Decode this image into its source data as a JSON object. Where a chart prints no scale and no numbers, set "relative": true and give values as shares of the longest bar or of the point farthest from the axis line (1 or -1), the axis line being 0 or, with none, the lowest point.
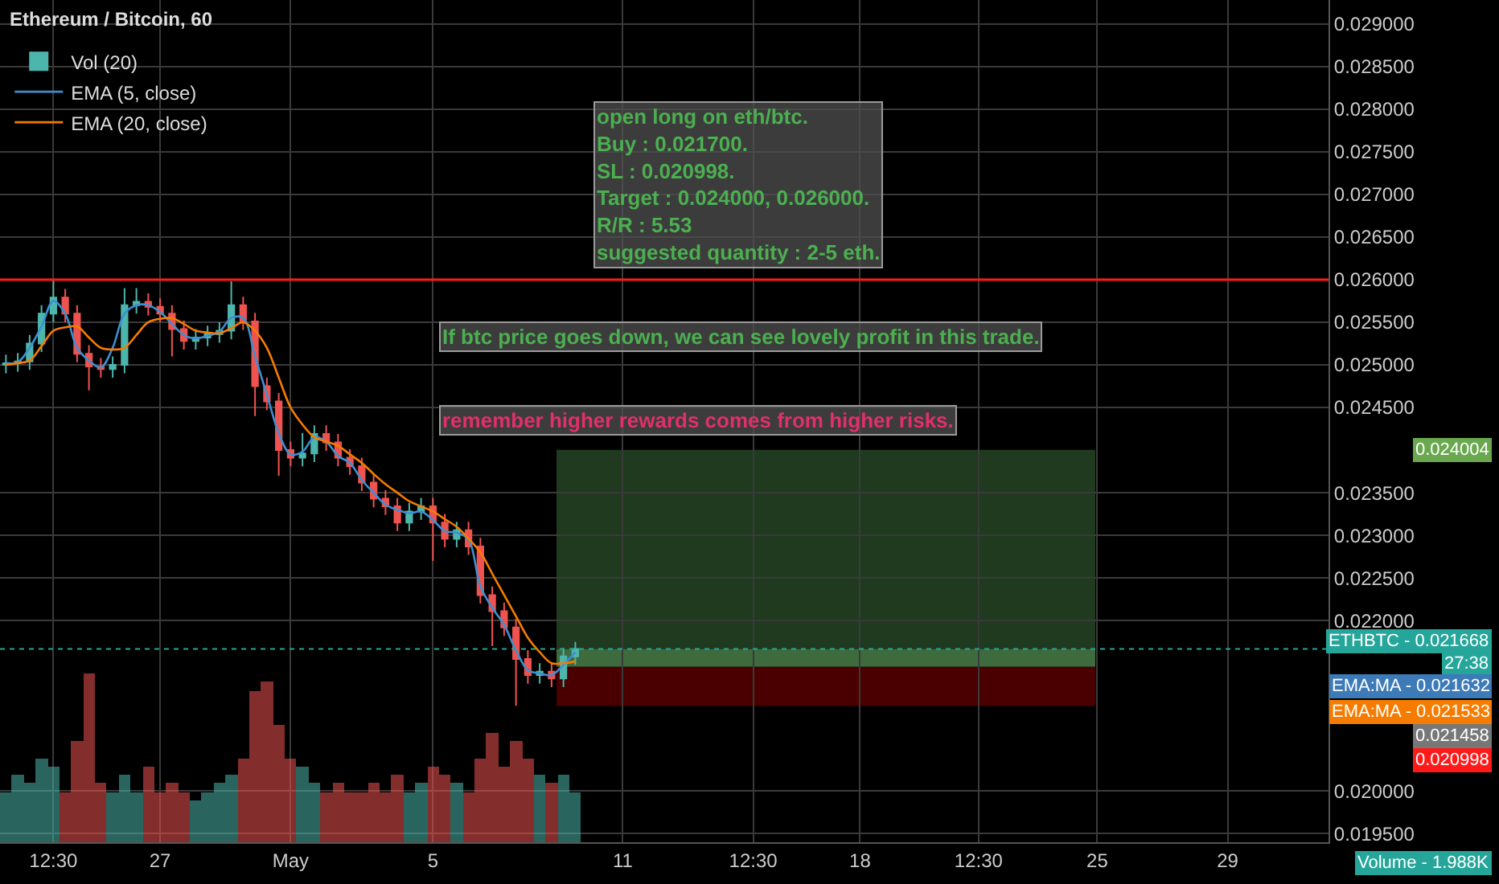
{
  "chart_data": [
    {
      "type": "candlestick",
      "title": "Ethereum / Bitcoin, 60",
      "categories": [
        null,
        null,
        null,
        null,
        "12:30",
        null,
        null,
        null,
        null,
        null,
        null,
        null,
        null,
        "27",
        null,
        null,
        null,
        null,
        null,
        null,
        null,
        null,
        null,
        null,
        "May",
        null,
        null,
        null,
        null,
        null,
        null,
        null,
        null,
        null,
        null,
        null,
        "5",
        null,
        null,
        null,
        null,
        null,
        null,
        null,
        null,
        null,
        null,
        null,
        null,
        null,
        null,
        null,
        "11",
        null,
        null,
        null,
        null,
        null,
        null,
        null,
        null,
        null,
        null,
        "12:30",
        null,
        null,
        null,
        null,
        null,
        null,
        null,
        null,
        "18",
        null,
        null,
        null,
        null,
        null,
        null,
        null,
        null,
        null,
        "12:30",
        null,
        null,
        null,
        null,
        null,
        null,
        null,
        null,
        null,
        "25",
        null,
        null,
        null,
        null,
        null,
        null,
        null,
        null,
        null,
        null,
        "29",
        null,
        null,
        null,
        null,
        null,
        null,
        null,
        null
      ],
      "ohlc": [
        [
          0.025,
          0.02512,
          0.0249,
          0.02502
        ],
        [
          0.02502,
          0.02514,
          0.02492,
          0.02504
        ],
        [
          0.02504,
          0.02535,
          0.02494,
          0.02525
        ],
        [
          0.02525,
          0.0257,
          0.02515,
          0.0256
        ],
        [
          0.0256,
          0.026,
          0.0255,
          0.02579
        ],
        [
          0.02579,
          0.02589,
          0.0255,
          0.0256
        ],
        [
          0.0256,
          0.0257,
          0.02503,
          0.02513
        ],
        [
          0.02513,
          0.02523,
          0.0247,
          0.02498
        ],
        [
          0.02498,
          0.02508,
          0.02485,
          0.02495
        ],
        [
          0.02495,
          0.0251,
          0.02485,
          0.025
        ],
        [
          0.025,
          0.0259,
          0.0249,
          0.0257
        ],
        [
          0.0257,
          0.0259,
          0.0256,
          0.02574
        ],
        [
          0.02574,
          0.02584,
          0.02558,
          0.02568
        ],
        [
          0.02568,
          0.02578,
          0.0255,
          0.0256
        ],
        [
          0.0256,
          0.0257,
          0.0251,
          0.02542
        ],
        [
          0.02542,
          0.02552,
          0.02518,
          0.02528
        ],
        [
          0.02528,
          0.02542,
          0.02518,
          0.02532
        ],
        [
          0.02532,
          0.02546,
          0.02522,
          0.02536
        ],
        [
          0.02536,
          0.0255,
          0.02526,
          0.0254
        ],
        [
          0.0254,
          0.02598,
          0.0253,
          0.0257
        ],
        [
          0.0257,
          0.0258,
          0.02541,
          0.02551
        ],
        [
          0.02551,
          0.02561,
          0.0244,
          0.02475
        ],
        [
          0.02475,
          0.02485,
          0.02447,
          0.02457
        ],
        [
          0.02457,
          0.02467,
          0.0237,
          0.024
        ],
        [
          0.024,
          0.0241,
          0.02381,
          0.02391
        ],
        [
          0.02391,
          0.0242,
          0.02381,
          0.02396
        ],
        [
          0.02396,
          0.02429,
          0.02386,
          0.02419
        ],
        [
          0.02419,
          0.02429,
          0.02399,
          0.02409
        ],
        [
          0.02409,
          0.02419,
          0.02381,
          0.02391
        ],
        [
          0.02391,
          0.02401,
          0.02371,
          0.02381
        ],
        [
          0.02381,
          0.02391,
          0.02352,
          0.02362
        ],
        [
          0.02362,
          0.02372,
          0.02333,
          0.02343
        ],
        [
          0.02343,
          0.02353,
          0.02324,
          0.02334
        ],
        [
          0.02334,
          0.02344,
          0.02305,
          0.02315
        ],
        [
          0.02315,
          0.02338,
          0.02305,
          0.02328
        ],
        [
          0.02328,
          0.02344,
          0.02318,
          0.02334
        ],
        [
          0.02334,
          0.02344,
          0.0227,
          0.02315
        ],
        [
          0.02315,
          0.02325,
          0.02286,
          0.02296
        ],
        [
          0.02296,
          0.02316,
          0.02286,
          0.02306
        ],
        [
          0.02306,
          0.02316,
          0.02277,
          0.02287
        ],
        [
          0.02287,
          0.02297,
          0.0222,
          0.0223
        ],
        [
          0.0223,
          0.0224,
          0.0217,
          0.02211
        ],
        [
          0.02211,
          0.02221,
          0.02182,
          0.02192
        ],
        [
          0.02192,
          0.02202,
          0.021,
          0.02155
        ],
        [
          0.02155,
          0.02165,
          0.02126,
          0.02136
        ],
        [
          0.02136,
          0.0215,
          0.02126,
          0.0214
        ],
        [
          0.0214,
          0.0215,
          0.02122,
          0.02132
        ],
        [
          0.02132,
          0.02168,
          0.02122,
          0.02158
        ],
        [
          0.02158,
          0.02175,
          0.02148,
          0.021668
        ],
        null,
        null,
        null,
        null,
        null,
        null,
        null,
        null,
        null,
        null,
        null,
        null,
        null,
        null,
        null,
        null,
        null,
        null,
        null,
        null,
        null,
        null,
        null,
        null,
        null,
        null,
        null,
        null,
        null,
        null,
        null,
        null,
        null,
        null,
        null,
        null,
        null,
        null,
        null,
        null,
        null,
        null,
        null,
        null,
        null,
        null,
        null,
        null,
        null,
        null,
        null,
        null,
        null,
        null,
        null,
        null,
        null,
        null,
        null,
        null,
        null,
        null,
        null
      ],
      "colors": [
        "#4db6ac",
        "#4db6ac",
        "#4db6ac",
        "#4db6ac",
        "#4db6ac",
        "#ef5350",
        "#ef5350",
        "#ef5350",
        "#ef5350",
        "#4db6ac",
        "#4db6ac",
        "#4db6ac",
        "#ef5350",
        "#ef5350",
        "#ef5350",
        "#ef5350",
        "#4db6ac",
        "#4db6ac",
        "#4db6ac",
        "#4db6ac",
        "#ef5350",
        "#ef5350",
        "#ef5350",
        "#ef5350",
        "#ef5350",
        "#4db6ac",
        "#4db6ac",
        "#ef5350",
        "#ef5350",
        "#ef5350",
        "#ef5350",
        "#ef5350",
        "#ef5350",
        "#ef5350",
        "#4db6ac",
        "#4db6ac",
        "#ef5350",
        "#ef5350",
        "#4db6ac",
        "#ef5350",
        "#ef5350",
        "#ef5350",
        "#ef5350",
        "#ef5350",
        "#ef5350",
        "#4db6ac",
        "#ef5350",
        "#4db6ac",
        "#4db6ac",
        null,
        null,
        null,
        null,
        null,
        null,
        null,
        null,
        null,
        null,
        null,
        null,
        null,
        null,
        null,
        null,
        null,
        null,
        null,
        null,
        null,
        null,
        null,
        null,
        null,
        null,
        null,
        null,
        null,
        null,
        null,
        null,
        null,
        null,
        null,
        null,
        null,
        null,
        null,
        null,
        null,
        null,
        null,
        null,
        null,
        null,
        null,
        null,
        null,
        null,
        null,
        null,
        null,
        null,
        null,
        null,
        null,
        null,
        null,
        null,
        null,
        null,
        null
      ],
      "series": [
        {
          "name": "EMA (5, close)",
          "type": "line",
          "color": "#3d8fd1",
          "values": [
            0.02502,
            0.02503,
            0.0252,
            0.02545,
            0.02575,
            0.0256,
            0.0252,
            0.02505,
            0.02497,
            0.0252,
            0.0256,
            0.0257,
            0.0257,
            0.02562,
            0.02548,
            0.02535,
            0.02531,
            0.02534,
            0.02539,
            0.02555,
            0.02555,
            0.0251,
            0.02465,
            0.0242,
            0.02395,
            0.02398,
            0.02415,
            0.0241,
            0.02393,
            0.02385,
            0.02365,
            0.0235,
            0.02336,
            0.0233,
            0.02326,
            0.02328,
            0.02318,
            0.02305,
            0.02303,
            0.02295,
            0.0224,
            0.02215,
            0.02195,
            0.02165,
            0.02142,
            0.02138,
            0.02136,
            0.02148,
            0.02163,
            null,
            null,
            null,
            null,
            null,
            null,
            null,
            null,
            null,
            null,
            null,
            null,
            null,
            null,
            null,
            null,
            null,
            null,
            null,
            null,
            null,
            null,
            null,
            null,
            null,
            null,
            null,
            null,
            null,
            null,
            null,
            null,
            null,
            null,
            null,
            null,
            null,
            null,
            null,
            null,
            null,
            null,
            null,
            null,
            null,
            null,
            null,
            null,
            null,
            null,
            null,
            null,
            null,
            null,
            null,
            null,
            null,
            null,
            null,
            null,
            null,
            null,
            null
          ]
        },
        {
          "name": "EMA (20, close)",
          "type": "line",
          "color": "#f57c00",
          "values": [
            0.025,
            0.02502,
            0.02505,
            0.02522,
            0.0254,
            0.02544,
            0.02545,
            0.02532,
            0.0252,
            0.02518,
            0.0252,
            0.02535,
            0.0255,
            0.02554,
            0.02555,
            0.02548,
            0.0254,
            0.02538,
            0.02537,
            0.02543,
            0.0255,
            0.0254,
            0.0252,
            0.02485,
            0.0245,
            0.0243,
            0.02415,
            0.0241,
            0.02405,
            0.02395,
            0.02385,
            0.02372,
            0.0236,
            0.0235,
            0.0234,
            0.02334,
            0.02328,
            0.02319,
            0.0231,
            0.02296,
            0.0228,
            0.02255,
            0.0223,
            0.02205,
            0.0218,
            0.02163,
            0.0215,
            0.0215,
            0.02152,
            null,
            null,
            null,
            null,
            null,
            null,
            null,
            null,
            null,
            null,
            null,
            null,
            null,
            null,
            null,
            null,
            null,
            null,
            null,
            null,
            null,
            null,
            null,
            null,
            null,
            null,
            null,
            null,
            null,
            null,
            null,
            null,
            null,
            null,
            null,
            null,
            null,
            null,
            null,
            null,
            null,
            null,
            null,
            null,
            null,
            null,
            null,
            null,
            null,
            null,
            null,
            null,
            null,
            null,
            null,
            null,
            null,
            null,
            null,
            null,
            null,
            null,
            null
          ]
        }
      ],
      "ylim": [
        0.0194,
        0.02928
      ],
      "yticks": [
        {
          "value": 0.0195,
          "label": "0.019500"
        },
        {
          "value": 0.02,
          "label": "0.020000"
        },
        {
          "value": 0.022,
          "label": "0.022000"
        },
        {
          "value": 0.0225,
          "label": "0.022500"
        },
        {
          "value": 0.023,
          "label": "0.023000"
        },
        {
          "value": 0.0235,
          "label": "0.023500"
        },
        {
          "value": 0.0245,
          "label": "0.024500"
        },
        {
          "value": 0.025,
          "label": "0.025000"
        },
        {
          "value": 0.0255,
          "label": "0.025500"
        },
        {
          "value": 0.026,
          "label": "0.026000"
        },
        {
          "value": 0.0265,
          "label": "0.026500"
        },
        {
          "value": 0.027,
          "label": "0.027000"
        },
        {
          "value": 0.0275,
          "label": "0.027500"
        },
        {
          "value": 0.028,
          "label": "0.028000"
        },
        {
          "value": 0.0285,
          "label": "0.028500"
        },
        {
          "value": 0.029,
          "label": "0.029000"
        }
      ],
      "grid": true,
      "legend": "top left",
      "bands": [
        {
          "axis": "y",
          "from": 0.021668,
          "to": 0.024004,
          "color": "#1f3a1f"
        },
        {
          "axis": "y",
          "from": 0.021458,
          "to": 0.021668,
          "color": "#3e6b3e"
        },
        {
          "axis": "y",
          "from": 0.020998,
          "to": 0.021458,
          "color": "#4a0000"
        }
      ],
      "ref_lines": [
        {
          "axis": "y",
          "value": 0.026,
          "color": "#ff1a1a",
          "line_style": "solid"
        },
        {
          "axis": "y",
          "value": 0.021668,
          "label": "ETHBTC - 0.021668",
          "color": "#26a69a",
          "line_style": "dotted"
        }
      ],
      "annotations": [
        "open long on eth/btc.\nBuy : 0.021700.\nSL : 0.020998.\nTarget : 0.024000, 0.026000.\nR/R : 5.53\nsuggested quantity : 2-5 eth.",
        "If btc price goes down, we can see lovely profit in this trade.",
        "remember higher rewards comes from higher risks.",
        "0.024004",
        "27:38",
        "EMA:MA - 0.021632",
        "EMA:MA - 0.021533",
        "0.021458",
        "0.020998"
      ]
    },
    {
      "type": "bar",
      "relative": true,
      "categories": [
        null,
        null,
        null,
        null,
        null,
        null,
        null,
        null,
        null,
        null,
        null,
        null,
        null,
        null,
        null,
        null,
        null,
        null,
        null,
        null,
        null,
        null,
        null,
        null,
        null,
        null,
        null,
        null,
        null,
        null,
        null,
        null,
        null,
        null,
        null,
        null,
        null,
        null,
        null,
        null,
        null,
        null,
        null,
        null,
        null,
        null,
        null,
        null,
        null,
        null,
        null,
        null,
        null,
        null,
        null,
        null,
        null,
        null,
        null,
        null,
        null,
        null,
        null,
        null,
        null,
        null,
        null,
        null,
        null,
        null,
        null,
        null,
        null,
        null,
        null,
        null,
        null,
        null,
        null,
        null,
        null,
        null,
        null,
        null,
        null,
        null,
        null,
        null,
        null,
        null,
        null,
        null,
        null,
        null,
        null,
        null,
        null,
        null,
        null,
        null,
        null,
        null,
        null,
        null,
        null,
        null,
        null,
        null,
        null,
        null,
        null,
        null
      ],
      "series": [
        {
          "name": "Vol (20)",
          "values": [
            0.3,
            0.4,
            0.35,
            0.5,
            0.45,
            0.3,
            0.6,
            1.0,
            0.35,
            0.3,
            0.4,
            0.3,
            0.45,
            0.3,
            0.35,
            0.3,
            0.25,
            0.3,
            0.35,
            0.4,
            0.5,
            0.9,
            0.95,
            0.7,
            0.5,
            0.45,
            0.35,
            0.3,
            0.35,
            0.3,
            0.3,
            0.35,
            0.3,
            0.4,
            0.3,
            0.35,
            0.45,
            0.4,
            0.35,
            0.3,
            0.5,
            0.65,
            0.45,
            0.6,
            0.5,
            0.4,
            0.35,
            0.4,
            0.3,
            null,
            null,
            null,
            null,
            null,
            null,
            null,
            null,
            null,
            null,
            null,
            null,
            null,
            null,
            null,
            null,
            null,
            null,
            null,
            null,
            null,
            null,
            null,
            null,
            null,
            null,
            null,
            null,
            null,
            null,
            null,
            null,
            null,
            null,
            null,
            null,
            null,
            null,
            null,
            null,
            null,
            null,
            null,
            null,
            null,
            null,
            null,
            null,
            null,
            null,
            null,
            null,
            null,
            null,
            null,
            null,
            null,
            null,
            null,
            null,
            null,
            null,
            null
          ],
          "colors": [
            "#4db6ac",
            "#4db6ac",
            "#4db6ac",
            "#4db6ac",
            "#4db6ac",
            "#ef5350",
            "#ef5350",
            "#ef5350",
            "#ef5350",
            "#4db6ac",
            "#4db6ac",
            "#4db6ac",
            "#ef5350",
            "#ef5350",
            "#ef5350",
            "#ef5350",
            "#4db6ac",
            "#4db6ac",
            "#4db6ac",
            "#4db6ac",
            "#ef5350",
            "#ef5350",
            "#ef5350",
            "#ef5350",
            "#ef5350",
            "#4db6ac",
            "#4db6ac",
            "#ef5350",
            "#ef5350",
            "#ef5350",
            "#ef5350",
            "#ef5350",
            "#ef5350",
            "#ef5350",
            "#4db6ac",
            "#4db6ac",
            "#ef5350",
            "#ef5350",
            "#4db6ac",
            "#ef5350",
            "#ef5350",
            "#ef5350",
            "#ef5350",
            "#ef5350",
            "#ef5350",
            "#4db6ac",
            "#ef5350",
            "#4db6ac",
            "#4db6ac",
            null,
            null,
            null,
            null,
            null,
            null,
            null,
            null,
            null,
            null,
            null,
            null,
            null,
            null,
            null,
            null,
            null,
            null,
            null,
            null,
            null,
            null,
            null,
            null,
            null,
            null,
            null,
            null,
            null,
            null,
            null,
            null,
            null,
            null,
            null,
            null,
            null,
            null,
            null,
            null,
            null,
            null,
            null,
            null,
            null,
            null,
            null,
            null,
            null,
            null,
            null,
            null,
            null,
            null,
            null,
            null,
            null,
            null,
            null,
            null,
            null,
            null,
            null
          ]
        }
      ],
      "annotations": [
        "Volume - 1.988K"
      ]
    }
  ]
}
